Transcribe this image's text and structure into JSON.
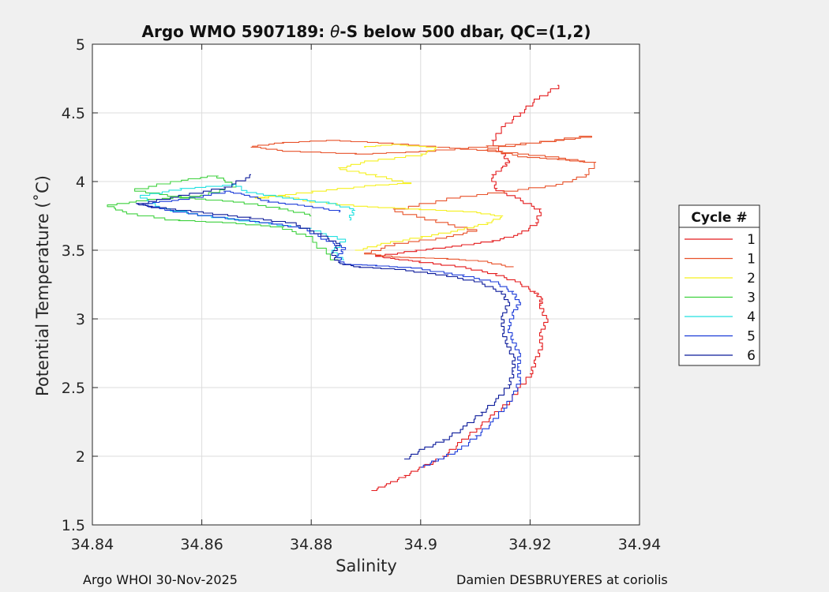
{
  "chart_data": {
    "type": "line",
    "title": "Argo WMO 5907189: θ-S below 500 dbar,  QC=(1,2)",
    "title_symbol": "θ",
    "title_prefix": "Argo WMO 5907189: ",
    "title_suffix": "-S below 500 dbar,  QC=(1,2)",
    "xlabel": "Salinity",
    "ylabel": "Potential Temperature (˚C)",
    "xlim": [
      34.84,
      34.94
    ],
    "ylim": [
      1.5,
      5
    ],
    "xticks": [
      34.84,
      34.86,
      34.88,
      34.9,
      34.92,
      34.94
    ],
    "xtick_labels": [
      "34.84",
      "34.86",
      "34.88",
      "34.9",
      "34.92",
      "34.94"
    ],
    "yticks": [
      1.5,
      2,
      2.5,
      3,
      3.5,
      4,
      4.5,
      5
    ],
    "ytick_labels": [
      "1.5",
      "2",
      "2.5",
      "3",
      "3.5",
      "4",
      "4.5",
      "5"
    ],
    "grid": true,
    "legend": {
      "title": "Cycle #",
      "placement": "outside-right"
    },
    "series": [
      {
        "name": "1",
        "color": "#e41a1c",
        "points": [
          [
            34.891,
            1.75
          ],
          [
            34.894,
            1.8
          ],
          [
            34.897,
            1.86
          ],
          [
            34.9,
            1.92
          ],
          [
            34.904,
            2.0
          ],
          [
            34.907,
            2.1
          ],
          [
            34.91,
            2.2
          ],
          [
            34.913,
            2.3
          ],
          [
            34.916,
            2.4
          ],
          [
            34.918,
            2.5
          ],
          [
            34.92,
            2.6
          ],
          [
            34.921,
            2.7
          ],
          [
            34.922,
            2.8
          ],
          [
            34.922,
            2.9
          ],
          [
            34.923,
            3.0
          ],
          [
            34.922,
            3.1
          ],
          [
            34.922,
            3.15
          ],
          [
            34.921,
            3.2
          ],
          [
            34.918,
            3.27
          ],
          [
            34.914,
            3.33
          ],
          [
            34.908,
            3.38
          ],
          [
            34.9,
            3.42
          ],
          [
            34.895,
            3.44
          ],
          [
            34.892,
            3.46
          ],
          [
            34.899,
            3.5
          ],
          [
            34.906,
            3.53
          ],
          [
            34.913,
            3.57
          ],
          [
            34.918,
            3.62
          ],
          [
            34.921,
            3.7
          ],
          [
            34.922,
            3.8
          ],
          [
            34.918,
            3.88
          ],
          [
            34.914,
            3.95
          ],
          [
            34.913,
            4.05
          ],
          [
            34.915,
            4.1
          ],
          [
            34.916,
            4.15
          ],
          [
            34.915,
            4.22
          ],
          [
            34.913,
            4.3
          ],
          [
            34.915,
            4.4
          ],
          [
            34.918,
            4.5
          ],
          [
            34.921,
            4.6
          ],
          [
            34.925,
            4.7
          ]
        ]
      },
      {
        "name": "1",
        "color": "#e8522a",
        "points": [
          [
            34.917,
            3.38
          ],
          [
            34.912,
            3.42
          ],
          [
            34.905,
            3.44
          ],
          [
            34.896,
            3.45
          ],
          [
            34.89,
            3.48
          ],
          [
            34.895,
            3.55
          ],
          [
            34.905,
            3.6
          ],
          [
            34.91,
            3.65
          ],
          [
            34.903,
            3.72
          ],
          [
            34.895,
            3.8
          ],
          [
            34.905,
            3.88
          ],
          [
            34.915,
            3.93
          ],
          [
            34.925,
            3.98
          ],
          [
            34.93,
            4.05
          ],
          [
            34.932,
            4.14
          ],
          [
            34.925,
            4.18
          ],
          [
            34.915,
            4.22
          ],
          [
            34.905,
            4.25
          ],
          [
            34.895,
            4.28
          ],
          [
            34.885,
            4.3
          ],
          [
            34.875,
            4.28
          ],
          [
            34.869,
            4.25
          ],
          [
            34.875,
            4.22
          ],
          [
            34.888,
            4.2
          ],
          [
            34.9,
            4.22
          ],
          [
            34.912,
            4.26
          ],
          [
            34.925,
            4.3
          ],
          [
            34.931,
            4.33
          ],
          [
            34.922,
            4.28
          ],
          [
            34.912,
            4.23
          ],
          [
            34.918,
            4.18
          ],
          [
            34.925,
            4.16
          ],
          [
            34.93,
            4.14
          ]
        ]
      },
      {
        "name": "2",
        "color": "#f5f01e",
        "points": [
          [
            34.888,
            3.5
          ],
          [
            34.893,
            3.55
          ],
          [
            34.9,
            3.6
          ],
          [
            34.907,
            3.65
          ],
          [
            34.912,
            3.7
          ],
          [
            34.915,
            3.75
          ],
          [
            34.91,
            3.78
          ],
          [
            34.9,
            3.8
          ],
          [
            34.89,
            3.82
          ],
          [
            34.88,
            3.86
          ],
          [
            34.875,
            3.9
          ],
          [
            34.87,
            3.88
          ],
          [
            34.88,
            3.93
          ],
          [
            34.89,
            3.97
          ],
          [
            34.898,
            3.99
          ],
          [
            34.892,
            4.05
          ],
          [
            34.885,
            4.1
          ],
          [
            34.89,
            4.15
          ],
          [
            34.9,
            4.2
          ],
          [
            34.903,
            4.25
          ],
          [
            34.896,
            4.27
          ],
          [
            34.89,
            4.25
          ]
        ]
      },
      {
        "name": "3",
        "color": "#3dd13d",
        "points": [
          [
            34.885,
            3.43
          ],
          [
            34.88,
            3.6
          ],
          [
            34.875,
            3.67
          ],
          [
            34.866,
            3.7
          ],
          [
            34.856,
            3.72
          ],
          [
            34.846,
            3.78
          ],
          [
            34.843,
            3.83
          ],
          [
            34.85,
            3.87
          ],
          [
            34.86,
            3.9
          ],
          [
            34.866,
            3.98
          ],
          [
            34.863,
            4.04
          ],
          [
            34.856,
            4.0
          ],
          [
            34.848,
            3.93
          ],
          [
            34.856,
            3.88
          ],
          [
            34.866,
            3.85
          ],
          [
            34.874,
            3.8
          ],
          [
            34.88,
            3.75
          ]
        ]
      },
      {
        "name": "4",
        "color": "#20e0e0",
        "points": [
          [
            34.886,
            3.43
          ],
          [
            34.884,
            3.5
          ],
          [
            34.886,
            3.58
          ],
          [
            34.88,
            3.66
          ],
          [
            34.872,
            3.7
          ],
          [
            34.862,
            3.75
          ],
          [
            34.852,
            3.82
          ],
          [
            34.849,
            3.9
          ],
          [
            34.856,
            3.95
          ],
          [
            34.866,
            3.98
          ],
          [
            34.868,
            3.92
          ],
          [
            34.875,
            3.88
          ],
          [
            34.883,
            3.84
          ],
          [
            34.888,
            3.79
          ],
          [
            34.887,
            3.72
          ]
        ]
      },
      {
        "name": "5",
        "color": "#1a3ad8",
        "points": [
          [
            34.9,
            1.92
          ],
          [
            34.903,
            1.98
          ],
          [
            34.907,
            2.05
          ],
          [
            34.91,
            2.15
          ],
          [
            34.913,
            2.25
          ],
          [
            34.915,
            2.35
          ],
          [
            34.917,
            2.45
          ],
          [
            34.918,
            2.55
          ],
          [
            34.918,
            2.65
          ],
          [
            34.918,
            2.75
          ],
          [
            34.917,
            2.85
          ],
          [
            34.916,
            2.95
          ],
          [
            34.917,
            3.05
          ],
          [
            34.918,
            3.12
          ],
          [
            34.917,
            3.2
          ],
          [
            34.914,
            3.27
          ],
          [
            34.908,
            3.32
          ],
          [
            34.9,
            3.37
          ],
          [
            34.892,
            3.39
          ],
          [
            34.886,
            3.4
          ],
          [
            34.885,
            3.46
          ],
          [
            34.886,
            3.52
          ],
          [
            34.883,
            3.58
          ],
          [
            34.879,
            3.66
          ],
          [
            34.873,
            3.7
          ],
          [
            34.864,
            3.74
          ],
          [
            34.855,
            3.79
          ],
          [
            34.849,
            3.84
          ],
          [
            34.856,
            3.87
          ],
          [
            34.864,
            3.93
          ],
          [
            34.868,
            3.9
          ],
          [
            34.872,
            3.85
          ],
          [
            34.879,
            3.82
          ],
          [
            34.885,
            3.78
          ]
        ]
      },
      {
        "name": "6",
        "color": "#0b1a9a",
        "points": [
          [
            34.897,
            1.98
          ],
          [
            34.9,
            2.05
          ],
          [
            34.904,
            2.12
          ],
          [
            34.908,
            2.22
          ],
          [
            34.911,
            2.32
          ],
          [
            34.914,
            2.42
          ],
          [
            34.916,
            2.52
          ],
          [
            34.917,
            2.62
          ],
          [
            34.917,
            2.72
          ],
          [
            34.916,
            2.82
          ],
          [
            34.915,
            2.92
          ],
          [
            34.915,
            3.02
          ],
          [
            34.916,
            3.12
          ],
          [
            34.915,
            3.2
          ],
          [
            34.911,
            3.27
          ],
          [
            34.905,
            3.32
          ],
          [
            34.897,
            3.36
          ],
          [
            34.889,
            3.38
          ],
          [
            34.885,
            3.41
          ],
          [
            34.884,
            3.48
          ],
          [
            34.885,
            3.55
          ],
          [
            34.882,
            3.62
          ],
          [
            34.877,
            3.7
          ],
          [
            34.869,
            3.74
          ],
          [
            34.86,
            3.78
          ],
          [
            34.851,
            3.82
          ],
          [
            34.848,
            3.84
          ],
          [
            34.856,
            3.9
          ],
          [
            34.864,
            3.96
          ],
          [
            34.869,
            4.05
          ]
        ]
      }
    ]
  },
  "footer": {
    "left": "Argo WHOI 30-Nov-2025",
    "right": "Damien DESBRUYERES at coriolis"
  }
}
